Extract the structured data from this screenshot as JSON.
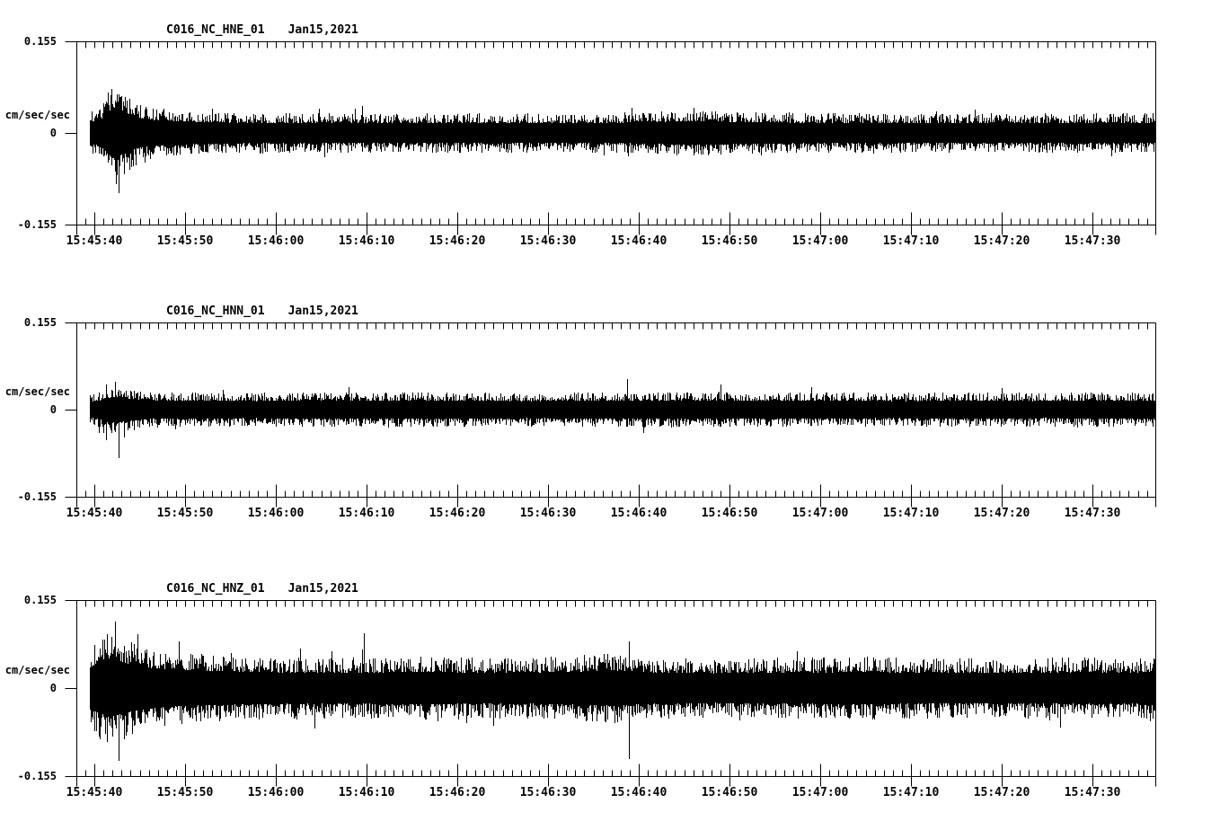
{
  "figure": {
    "background_color": "#ffffff",
    "trace_color": "#000000"
  },
  "chart_data": [
    {
      "type": "line",
      "subtype": "seismogram",
      "station_channel_label": "C016_NC_HNE_01",
      "date_label": "Jan15,2021",
      "units_label": "cm/sec/sec",
      "ytick_labels": [
        "0.155",
        "0",
        "-0.155"
      ],
      "ylim": [
        -0.155,
        0.155
      ],
      "x_axis": {
        "tick_labels": [
          "15:45:40",
          "15:45:50",
          "15:46:00",
          "15:46:10",
          "15:46:20",
          "15:46:30",
          "15:46:40",
          "15:46:50",
          "15:47:00",
          "15:47:10",
          "15:47:20",
          "15:47:30"
        ],
        "major_tick_interval_s": 10,
        "minor_tick_interval_s": 1,
        "start_time": "15:45:38",
        "end_time": "15:47:37"
      },
      "noise_envelope_t_amp": [
        [
          -0.5,
          0.036
        ],
        [
          0.5,
          0.04
        ],
        [
          1.2,
          0.06
        ],
        [
          1.8,
          0.08
        ],
        [
          2.4,
          0.088
        ],
        [
          3,
          0.072
        ],
        [
          4,
          0.06
        ],
        [
          5,
          0.048
        ],
        [
          7,
          0.042
        ],
        [
          10,
          0.038
        ],
        [
          14,
          0.035
        ],
        [
          20,
          0.034
        ],
        [
          28,
          0.034
        ],
        [
          36,
          0.033
        ],
        [
          44,
          0.034
        ],
        [
          52,
          0.033
        ],
        [
          60,
          0.035
        ],
        [
          64,
          0.038
        ],
        [
          68,
          0.039
        ],
        [
          72,
          0.036
        ],
        [
          80,
          0.034
        ],
        [
          88,
          0.034
        ],
        [
          96,
          0.033
        ],
        [
          104,
          0.034
        ],
        [
          112,
          0.034
        ],
        [
          117,
          0.034
        ]
      ],
      "spikes_t_up_down": [
        [
          1.0,
          0.05,
          0.04
        ],
        [
          1.5,
          0.06,
          0.05
        ],
        [
          1.9,
          0.075,
          0.055
        ],
        [
          2.3,
          0.055,
          0.065
        ],
        [
          2.7,
          0.05,
          0.102
        ],
        [
          3.3,
          0.045,
          0.07
        ],
        [
          3.9,
          0.04,
          0.062
        ],
        [
          4.6,
          0.042,
          0.055
        ],
        [
          5.5,
          0.04,
          0.05
        ],
        [
          29.5,
          0.045,
          0.032
        ],
        [
          66,
          0.043,
          0.036
        ],
        [
          97,
          0.04,
          0.03
        ]
      ]
    },
    {
      "type": "line",
      "subtype": "seismogram",
      "station_channel_label": "C016_NC_HNN_01",
      "date_label": "Jan15,2021",
      "units_label": "cm/sec/sec",
      "ytick_labels": [
        "0.155",
        "0",
        "-0.155"
      ],
      "ylim": [
        -0.155,
        0.155
      ],
      "x_axis": {
        "tick_labels": [
          "15:45:40",
          "15:45:50",
          "15:46:00",
          "15:46:10",
          "15:46:20",
          "15:46:30",
          "15:46:40",
          "15:46:50",
          "15:47:00",
          "15:47:10",
          "15:47:20",
          "15:47:30"
        ],
        "major_tick_interval_s": 10,
        "minor_tick_interval_s": 1,
        "start_time": "15:45:38",
        "end_time": "15:47:37"
      },
      "noise_envelope_t_amp": [
        [
          -0.5,
          0.028
        ],
        [
          0.5,
          0.032
        ],
        [
          1.5,
          0.042
        ],
        [
          2.5,
          0.044
        ],
        [
          3.5,
          0.04
        ],
        [
          5,
          0.035
        ],
        [
          7,
          0.032
        ],
        [
          10,
          0.031
        ],
        [
          16,
          0.03
        ],
        [
          24,
          0.031
        ],
        [
          32,
          0.032
        ],
        [
          40,
          0.031
        ],
        [
          48,
          0.03
        ],
        [
          56,
          0.031
        ],
        [
          64,
          0.032
        ],
        [
          72,
          0.031
        ],
        [
          80,
          0.031
        ],
        [
          88,
          0.03
        ],
        [
          96,
          0.031
        ],
        [
          104,
          0.03
        ],
        [
          112,
          0.031
        ],
        [
          117,
          0.031
        ]
      ],
      "spikes_t_up_down": [
        [
          0.5,
          0.03,
          0.042
        ],
        [
          1.3,
          0.04,
          0.055
        ],
        [
          2.3,
          0.05,
          0.04
        ],
        [
          2.7,
          0.035,
          0.086
        ],
        [
          3.3,
          0.03,
          0.05
        ],
        [
          28,
          0.04,
          0.025
        ],
        [
          58.7,
          0.055,
          0.03
        ],
        [
          69,
          0.045,
          0.03
        ],
        [
          79,
          0.04,
          0.028
        ],
        [
          100,
          0.038,
          0.026
        ]
      ]
    },
    {
      "type": "line",
      "subtype": "seismogram",
      "station_channel_label": "C016_NC_HNZ_01",
      "date_label": "Jan15,2021",
      "units_label": "cm/sec/sec",
      "ytick_labels": [
        "0.155",
        "0",
        "-0.155"
      ],
      "ylim": [
        -0.155,
        0.155
      ],
      "x_axis": {
        "tick_labels": [
          "15:45:40",
          "15:45:50",
          "15:46:00",
          "15:46:10",
          "15:46:20",
          "15:46:30",
          "15:46:40",
          "15:46:50",
          "15:47:00",
          "15:47:10",
          "15:47:20",
          "15:47:30"
        ],
        "major_tick_interval_s": 10,
        "minor_tick_interval_s": 1,
        "start_time": "15:45:38",
        "end_time": "15:47:37"
      },
      "noise_envelope_t_amp": [
        [
          -0.5,
          0.07
        ],
        [
          0.5,
          0.085
        ],
        [
          1.5,
          0.1
        ],
        [
          2.5,
          0.095
        ],
        [
          3.5,
          0.085
        ],
        [
          5,
          0.075
        ],
        [
          7,
          0.068
        ],
        [
          10,
          0.062
        ],
        [
          14,
          0.058
        ],
        [
          20,
          0.055
        ],
        [
          28,
          0.054
        ],
        [
          36,
          0.056
        ],
        [
          44,
          0.054
        ],
        [
          52,
          0.056
        ],
        [
          57,
          0.062
        ],
        [
          60,
          0.056
        ],
        [
          68,
          0.052
        ],
        [
          76,
          0.054
        ],
        [
          84,
          0.056
        ],
        [
          92,
          0.054
        ],
        [
          100,
          0.053
        ],
        [
          108,
          0.055
        ],
        [
          117,
          0.054
        ]
      ],
      "spikes_t_up_down": [
        [
          0.6,
          0.07,
          0.09
        ],
        [
          1.4,
          0.095,
          0.095
        ],
        [
          1.9,
          0.09,
          0.07
        ],
        [
          2.3,
          0.117,
          0.06
        ],
        [
          2.7,
          0.06,
          0.128
        ],
        [
          3.3,
          0.075,
          0.09
        ],
        [
          4.2,
          0.065,
          0.08
        ],
        [
          7.2,
          0.06,
          0.05
        ],
        [
          29.7,
          0.096,
          0.05
        ],
        [
          41,
          0.05,
          0.062
        ],
        [
          56.5,
          0.06,
          0.055
        ],
        [
          57.3,
          0.055,
          0.062
        ],
        [
          58.9,
          0.083,
          0.125
        ],
        [
          86,
          0.05,
          0.048
        ]
      ]
    }
  ]
}
